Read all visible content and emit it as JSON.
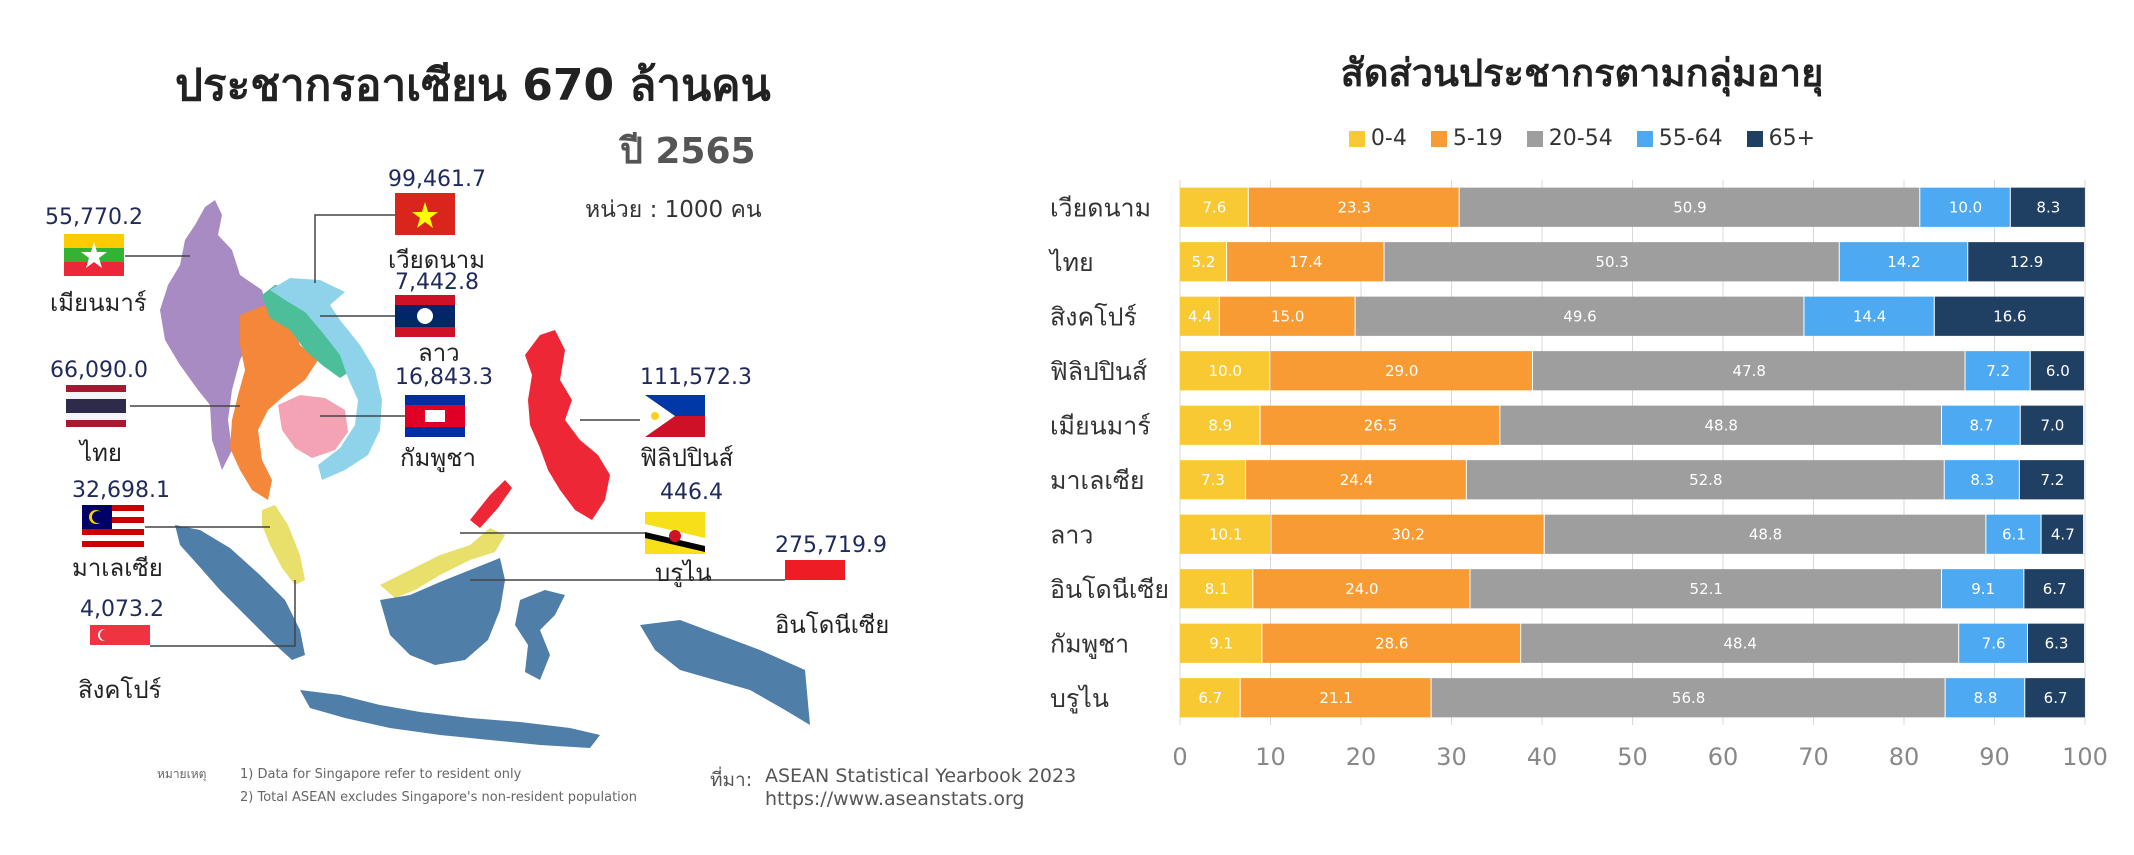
{
  "map": {
    "title": "ประชากรอาเซียน  670 ล้านคน",
    "year": "ปี 2565",
    "unit": "หน่วย : 1000 คน",
    "countries": [
      {
        "name": "เมียนมาร์",
        "value": "55,770.2"
      },
      {
        "name": "เวียดนาม",
        "value": "99,461.7"
      },
      {
        "name": "ลาว",
        "value": "7,442.8"
      },
      {
        "name": "ไทย",
        "value": "66,090.0"
      },
      {
        "name": "กัมพูชา",
        "value": "16,843.3"
      },
      {
        "name": "ฟิลิปปินส์",
        "value": "111,572.3"
      },
      {
        "name": "มาเลเซีย",
        "value": "32,698.1"
      },
      {
        "name": "บรูไน",
        "value": "446.4"
      },
      {
        "name": "อินโดนีเซีย",
        "value": "275,719.9"
      },
      {
        "name": "สิงคโปร์",
        "value": "4,073.2"
      }
    ],
    "footnote_label": "หมายเหตุ",
    "footnotes": [
      "1) Data for Singapore refer to resident only",
      "2) Total ASEAN excludes Singapore's non-resident population"
    ],
    "source_label": "ที่มา:",
    "source_lines": [
      "ASEAN Statistical Yearbook 2023",
      "https://www.aseanstats.org"
    ],
    "region_colors": {
      "myanmar": "#a98bc4",
      "thailand": "#f4873a",
      "laos": "#4cbf9a",
      "vietnam": "#8fd3ea",
      "cambodia": "#f4a3b4",
      "malaysia": "#e8e06a",
      "indonesia": "#4f7fa8",
      "philippines": "#ee2737",
      "brunei": "#e8e06a"
    }
  },
  "chart_data": {
    "type": "bar",
    "orientation": "horizontal",
    "stacked": true,
    "title": "สัดส่วนประชากรตามกลุ่มอายุ",
    "categories": [
      "เวียดนาม",
      "ไทย",
      "สิงคโปร์",
      "ฟิลิปปินส์",
      "เมียนมาร์",
      "มาเลเซีย",
      "ลาว",
      "อินโดนีเซีย",
      "กัมพูชา",
      "บรูไน"
    ],
    "series": [
      {
        "name": "0-4",
        "color": "#f9c933",
        "values": [
          7.6,
          5.2,
          4.4,
          10.0,
          8.9,
          7.3,
          10.1,
          8.1,
          9.1,
          6.7
        ]
      },
      {
        "name": "5-19",
        "color": "#f99b33",
        "values": [
          23.3,
          17.4,
          15.0,
          29.0,
          26.5,
          24.4,
          30.2,
          24.0,
          28.6,
          21.1
        ]
      },
      {
        "name": "20-54",
        "color": "#9e9e9e",
        "values": [
          50.9,
          50.3,
          49.6,
          47.8,
          48.8,
          52.8,
          48.8,
          52.1,
          48.4,
          56.8
        ]
      },
      {
        "name": "55-64",
        "color": "#4daaf2",
        "values": [
          10.0,
          14.2,
          14.4,
          7.2,
          8.7,
          8.3,
          6.1,
          9.1,
          7.6,
          8.8
        ]
      },
      {
        "name": "65+",
        "color": "#1f3f63",
        "values": [
          8.3,
          12.9,
          16.6,
          6.0,
          7.0,
          7.2,
          4.7,
          6.7,
          6.3,
          6.7
        ]
      }
    ],
    "x_ticks": [
      "0",
      "10",
      "20",
      "30",
      "40",
      "50",
      "60",
      "70",
      "80",
      "90",
      "100"
    ],
    "xlim": [
      0,
      100
    ],
    "grid": true,
    "legend_position": "top-center"
  }
}
